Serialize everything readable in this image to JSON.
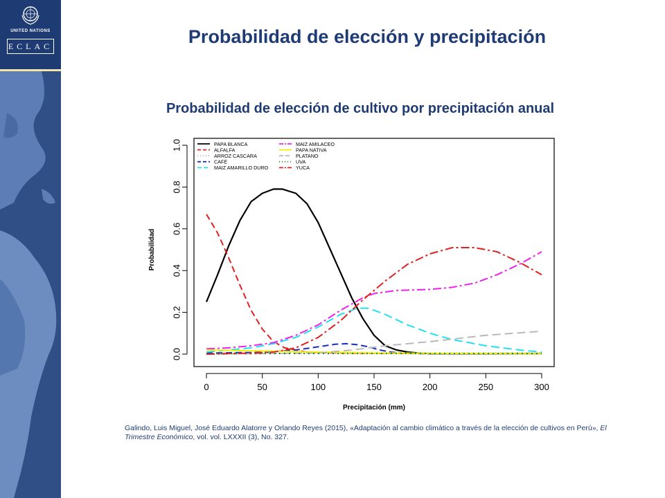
{
  "header": {
    "title": "Probabilidad de elección y precipitación",
    "subtitle": "Probabilidad de elección de cultivo por precipitación anual"
  },
  "logo": {
    "un_text": "UNITED NATIONS",
    "eclac_text": "ECLAC"
  },
  "chart_data": {
    "type": "line",
    "xlabel": "Precipitación (mm)",
    "ylabel": "Probabilidad",
    "xlim": [
      0,
      300
    ],
    "ylim": [
      0,
      1.0
    ],
    "xticks": [
      "0",
      "50",
      "100",
      "150",
      "200",
      "250",
      "300"
    ],
    "yticks": [
      "0.0",
      "0.2",
      "0.4",
      "0.6",
      "0.8",
      "1.0"
    ],
    "grid": false,
    "legend_position": "top-left",
    "series": [
      {
        "name": "PAPA BLANCA",
        "color": "#000000",
        "dash": "solid",
        "x": [
          0,
          10,
          20,
          30,
          40,
          50,
          60,
          68,
          80,
          90,
          100,
          110,
          120,
          130,
          140,
          150,
          160,
          170,
          180,
          190,
          200,
          250,
          300
        ],
        "y": [
          0.25,
          0.38,
          0.52,
          0.64,
          0.73,
          0.77,
          0.79,
          0.79,
          0.77,
          0.72,
          0.63,
          0.51,
          0.39,
          0.27,
          0.17,
          0.09,
          0.04,
          0.02,
          0.01,
          0.005,
          0.003,
          0.002,
          0.002
        ]
      },
      {
        "name": "ALFALFA",
        "color": "#e02020",
        "dash": "9,5",
        "x": [
          0,
          10,
          20,
          30,
          40,
          50,
          60,
          70,
          80,
          90,
          100,
          120,
          150,
          200,
          250,
          300
        ],
        "y": [
          0.67,
          0.58,
          0.46,
          0.33,
          0.21,
          0.12,
          0.06,
          0.03,
          0.02,
          0.01,
          0.008,
          0.005,
          0.004,
          0.003,
          0.003,
          0.003
        ]
      },
      {
        "name": "ARROZ CASCARA",
        "color": "#b0b0b0",
        "dash": "2,6",
        "x": [
          0,
          50,
          100,
          150,
          200,
          250,
          300
        ],
        "y": [
          0.005,
          0.005,
          0.005,
          0.005,
          0.005,
          0.005,
          0.005
        ]
      },
      {
        "name": "CAFE",
        "color": "#1a2ad0",
        "dash": "9,5",
        "x": [
          0,
          40,
          60,
          80,
          100,
          115,
          125,
          135,
          145,
          155,
          165,
          175,
          190,
          200,
          250,
          300
        ],
        "y": [
          0.005,
          0.008,
          0.012,
          0.02,
          0.035,
          0.047,
          0.05,
          0.045,
          0.035,
          0.02,
          0.01,
          0.005,
          0.003,
          0.002,
          0.002,
          0.002
        ]
      },
      {
        "name": "MAIZ AMARILLO DURO",
        "color": "#22e0f0",
        "dash": "12,6",
        "x": [
          0,
          20,
          40,
          60,
          80,
          100,
          120,
          135,
          145,
          160,
          180,
          200,
          220,
          250,
          280,
          300
        ],
        "y": [
          0.01,
          0.02,
          0.03,
          0.05,
          0.08,
          0.13,
          0.19,
          0.22,
          0.22,
          0.19,
          0.14,
          0.1,
          0.07,
          0.04,
          0.02,
          0.01
        ]
      },
      {
        "name": "MAIZ AMILACEO",
        "color": "#f020f0",
        "dash": "12,4,3,4",
        "x": [
          0,
          20,
          40,
          60,
          80,
          100,
          120,
          140,
          150,
          170,
          200,
          220,
          240,
          260,
          280,
          300
        ],
        "y": [
          0.025,
          0.03,
          0.04,
          0.055,
          0.09,
          0.14,
          0.21,
          0.27,
          0.29,
          0.305,
          0.31,
          0.32,
          0.34,
          0.38,
          0.43,
          0.49
        ]
      },
      {
        "name": "PAPA NATIVA",
        "color": "#f0f000",
        "dash": "solid",
        "x": [
          0,
          50,
          100,
          150,
          200,
          250,
          300
        ],
        "y": [
          0.02,
          0.015,
          0.01,
          0.006,
          0.004,
          0.003,
          0.002
        ]
      },
      {
        "name": "PLATANO",
        "color": "#b8b8b8",
        "dash": "12,6",
        "x": [
          0,
          100,
          130,
          160,
          200,
          250,
          300
        ],
        "y": [
          0.0,
          0.005,
          0.02,
          0.04,
          0.06,
          0.09,
          0.11
        ]
      },
      {
        "name": "UVA",
        "color": "#1a8a1a",
        "dash": "2,5",
        "x": [
          0,
          50,
          100,
          150,
          200,
          250,
          300
        ],
        "y": [
          0.003,
          0.003,
          0.003,
          0.003,
          0.003,
          0.003,
          0.003
        ]
      },
      {
        "name": "YUCA",
        "color": "#e02020",
        "dash": "12,4,3,4",
        "x": [
          0,
          40,
          60,
          80,
          100,
          120,
          140,
          160,
          180,
          200,
          220,
          240,
          260,
          280,
          300
        ],
        "y": [
          0.0,
          0.005,
          0.01,
          0.03,
          0.08,
          0.16,
          0.26,
          0.35,
          0.43,
          0.48,
          0.51,
          0.51,
          0.49,
          0.44,
          0.38
        ]
      }
    ]
  },
  "citation": {
    "part1": "Galindo, Luis Miguel, José Eduardo Alatorre y Orlando Reyes  (2015), «Adaptación al cambio climático a través de la elección de cultivos en Perú», ",
    "journal": "El Trimestre Económico",
    "part2": ", vol. vol. LXXXII (3), No. 327."
  }
}
